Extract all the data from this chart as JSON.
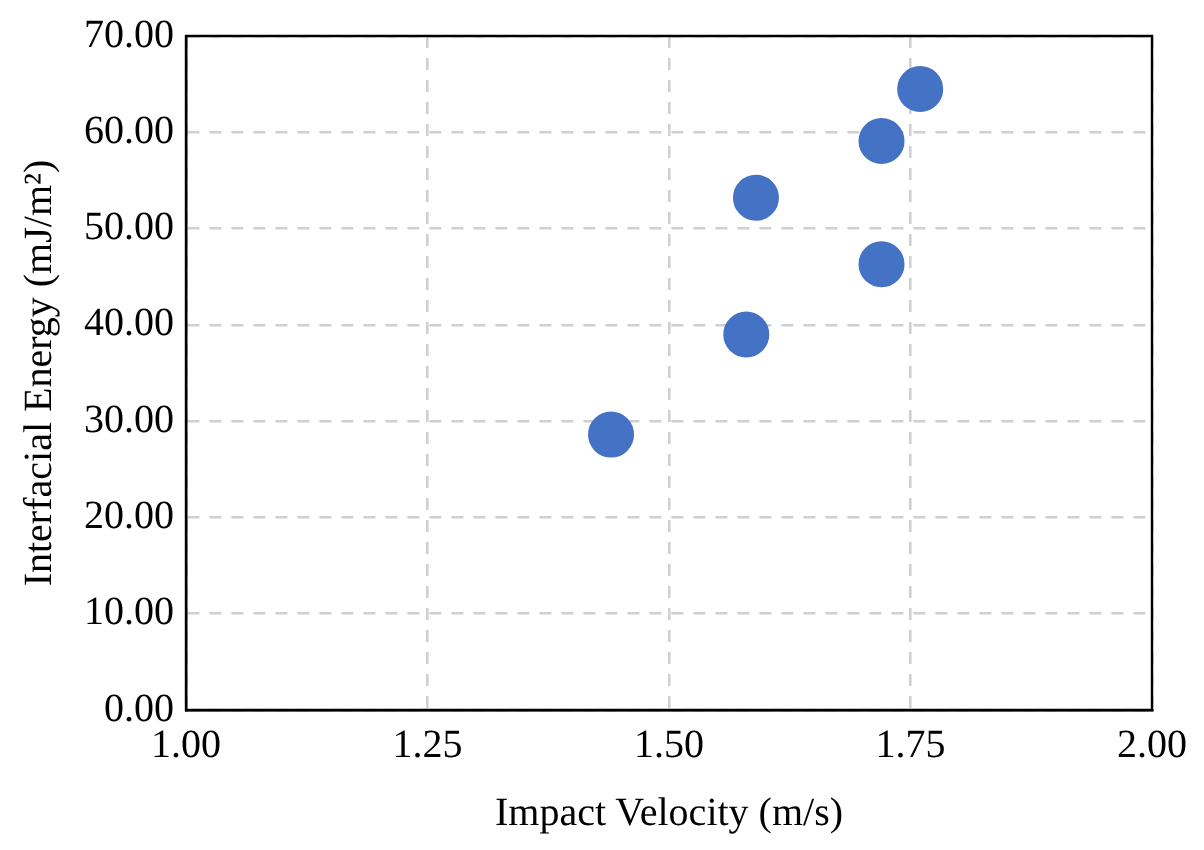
{
  "chart_data": {
    "type": "scatter",
    "xlabel": "Impact Velocity (m/s)",
    "ylabel": "Interfacial Energy (mJ/m²)",
    "x": [
      1.44,
      1.58,
      1.59,
      1.72,
      1.72,
      1.76
    ],
    "values": [
      28.6,
      39.0,
      53.2,
      46.3,
      59.1,
      64.5
    ],
    "color": "#4472c4",
    "marker": "circle",
    "grid": true,
    "legend": false,
    "xlim": [
      1.0,
      2.0
    ],
    "ylim": [
      0,
      70
    ],
    "xticks": [
      {
        "value": 1,
        "label": "1.00"
      },
      {
        "value": 1.25,
        "label": "1.25"
      },
      {
        "value": 1.5,
        "label": "1.50"
      },
      {
        "value": 1.75,
        "label": "1.75"
      },
      {
        "value": 2,
        "label": "2.00"
      }
    ],
    "yticks": [
      {
        "value": 0,
        "label": "0.00"
      },
      {
        "value": 10,
        "label": "10.00"
      },
      {
        "value": 20,
        "label": "20.00"
      },
      {
        "value": 30,
        "label": "30.00"
      },
      {
        "value": 40,
        "label": "40.00"
      },
      {
        "value": 50,
        "label": "50.00"
      },
      {
        "value": 60,
        "label": "60.00"
      },
      {
        "value": 70,
        "label": "70.00"
      }
    ]
  }
}
